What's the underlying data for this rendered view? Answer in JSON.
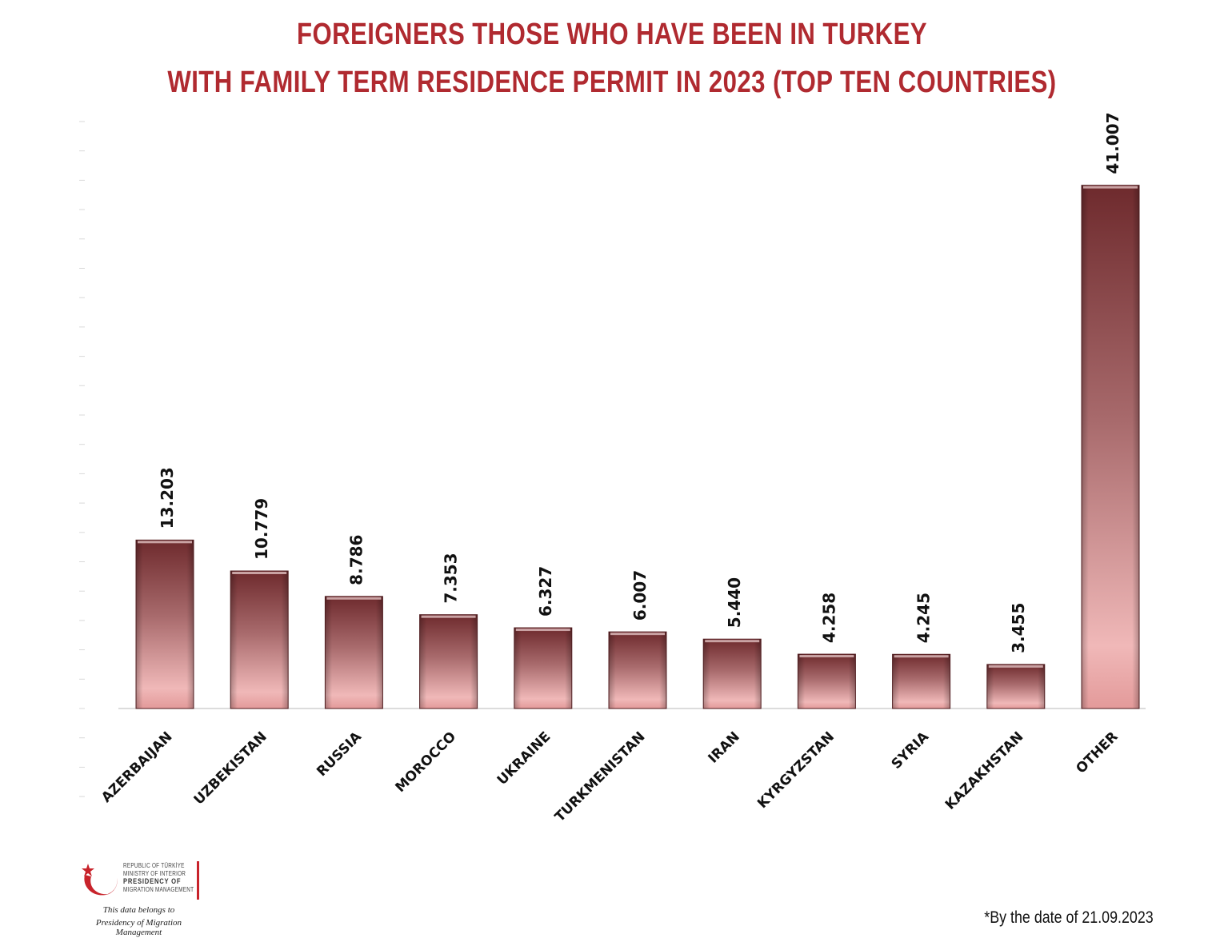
{
  "title_line1": "FOREIGNERS THOSE WHO HAVE BEEN IN TURKEY",
  "title_line2": "WITH FAMILY TERM RESIDENCE PERMIT IN 2023 (TOP TEN COUNTRIES)",
  "footnote": "*By the date of 21.09.2023",
  "logo": {
    "line1": "REPUBLIC OF TÜRKİYE",
    "line2": "MINISTRY OF INTERIOR",
    "line3": "PRESIDENCY OF",
    "line4": "MIGRATION MANAGEMENT",
    "icon": "crescent-star-icon"
  },
  "attribution_line1": "This data belongs to",
  "attribution_line2": "Presidency of Migration Management",
  "colors": {
    "title": "#b02a30",
    "bar_dark": "#6e2a2d",
    "bar_light": "#f0b5b5"
  },
  "chart_data": {
    "type": "bar",
    "title": "FOREIGNERS THOSE WHO HAVE BEEN IN TURKEY WITH FAMILY TERM RESIDENCE PERMIT IN 2023 (TOP TEN COUNTRIES)",
    "categories": [
      "AZERBAIJAN",
      "UZBEKISTAN",
      "RUSSIA",
      "MOROCCO",
      "UKRAINE",
      "TURKMENISTAN",
      "IRAN",
      "KYRGYZSTAN",
      "SYRIA",
      "KAZAKHSTAN",
      "OTHER"
    ],
    "values": [
      13203,
      10779,
      8786,
      7353,
      6327,
      6007,
      5440,
      4258,
      4245,
      3455,
      41007
    ],
    "value_labels": [
      "13.203",
      "10.779",
      "8.786",
      "7.353",
      "6.327",
      "6.007",
      "5.440",
      "4.258",
      "4.245",
      "3.455",
      "41.007"
    ],
    "xlabel": "",
    "ylabel": "",
    "ylim": [
      0,
      46000
    ],
    "grid": false,
    "legend": "none"
  }
}
